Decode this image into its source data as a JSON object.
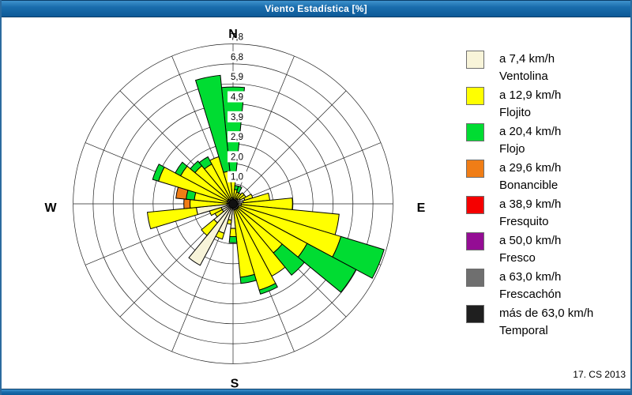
{
  "window": {
    "title": "Viento Estadística [%]",
    "footer": "17. CS 2013"
  },
  "legend": {
    "items": [
      {
        "speed": "a 7,4 km/h",
        "name": "Ventolina",
        "color": "#f8f4d9"
      },
      {
        "speed": "a 12,9 km/h",
        "name": "Flojito",
        "color": "#ffff00"
      },
      {
        "speed": "a 20,4 km/h",
        "name": "Flojo",
        "color": "#00dc32"
      },
      {
        "speed": "a 29,6 km/h",
        "name": "Bonancible",
        "color": "#f07d16"
      },
      {
        "speed": "a 38,9 km/h",
        "name": "Fresquito",
        "color": "#f50000"
      },
      {
        "speed": "a 50,0 km/h",
        "name": "Fresco",
        "color": "#940d94"
      },
      {
        "speed": "a 63,0 km/h",
        "name": "Frescachón",
        "color": "#6f6f6f"
      },
      {
        "speed": "más de 63,0 km/h",
        "name": "Temporal",
        "color": "#1f1f1f"
      }
    ]
  },
  "chart_data": {
    "type": "bar",
    "subtype": "wind-rose-stacked-polar",
    "title": "Viento Estadística [%]",
    "units": "%",
    "compass_labels": {
      "north": "N",
      "east": "E",
      "south": "S",
      "west": "W"
    },
    "ring_labels": [
      "1,0",
      "2,0",
      "2,9",
      "3,9",
      "4,9",
      "5,9",
      "6,8",
      "7,8"
    ],
    "ring_values": [
      0.975,
      1.95,
      2.925,
      3.9,
      4.875,
      5.85,
      6.825,
      7.8
    ],
    "rmax": 7.8,
    "grid_spoke_step_deg": 22.5,
    "sector_width_deg": 11.25,
    "series_classes": [
      "Ventolina",
      "Flojito",
      "Flojo",
      "Bonancible",
      "Fresquito",
      "Fresco",
      "Frescachón",
      "Temporal"
    ],
    "sectors": [
      {
        "dir": "N",
        "deg": 0.0,
        "values": [
          0.2,
          1.3,
          4.2,
          0
        ]
      },
      {
        "dir": "NbE",
        "deg": 11.25,
        "values": [
          0.2,
          0.5,
          0.2,
          0
        ]
      },
      {
        "dir": "NNE",
        "deg": 22.5,
        "values": [
          0.2,
          0.4,
          0.3,
          0
        ]
      },
      {
        "dir": "NEbN",
        "deg": 33.75,
        "values": [
          0.3,
          0.3,
          0,
          0
        ]
      },
      {
        "dir": "NE",
        "deg": 45.0,
        "values": [
          0.3,
          0.4,
          0,
          0
        ]
      },
      {
        "dir": "NEbE",
        "deg": 56.25,
        "values": [
          0.4,
          0.3,
          0,
          0
        ]
      },
      {
        "dir": "ENE",
        "deg": 67.5,
        "values": [
          0.6,
          0.4,
          0,
          0
        ]
      },
      {
        "dir": "EbN",
        "deg": 78.75,
        "values": [
          0.5,
          1.3,
          0,
          0
        ]
      },
      {
        "dir": "E",
        "deg": 90.0,
        "values": [
          0.4,
          2.5,
          0,
          0
        ]
      },
      {
        "dir": "EbS",
        "deg": 101.25,
        "values": [
          0.4,
          4.8,
          0,
          0
        ]
      },
      {
        "dir": "ESE",
        "deg": 112.5,
        "values": [
          0.3,
          5.2,
          2.2,
          0
        ]
      },
      {
        "dir": "SEbE",
        "deg": 123.75,
        "values": [
          0.3,
          3.8,
          2.7,
          0
        ]
      },
      {
        "dir": "SE",
        "deg": 135.0,
        "values": [
          0.3,
          2.8,
          1.4,
          0
        ]
      },
      {
        "dir": "SEbS",
        "deg": 146.25,
        "values": [
          0.3,
          3.7,
          0,
          0
        ]
      },
      {
        "dir": "SSE",
        "deg": 157.5,
        "values": [
          0.3,
          4.1,
          0.2,
          0
        ]
      },
      {
        "dir": "SbE",
        "deg": 168.75,
        "values": [
          0.3,
          3.3,
          0.3,
          0
        ]
      },
      {
        "dir": "S",
        "deg": 180.0,
        "values": [
          1.2,
          0.4,
          0.3,
          0
        ]
      },
      {
        "dir": "SbW",
        "deg": 191.25,
        "values": [
          0.8,
          0.2,
          0,
          0
        ]
      },
      {
        "dir": "SSW",
        "deg": 202.5,
        "values": [
          1.5,
          0.3,
          0,
          0
        ]
      },
      {
        "dir": "SWbS",
        "deg": 213.75,
        "values": [
          3.4,
          0,
          0,
          0
        ]
      },
      {
        "dir": "SW",
        "deg": 225.0,
        "values": [
          1.2,
          0.8,
          0,
          0
        ]
      },
      {
        "dir": "SWbW",
        "deg": 236.25,
        "values": [
          0.6,
          0.4,
          0,
          0
        ]
      },
      {
        "dir": "WSW",
        "deg": 247.5,
        "values": [
          0.6,
          0.6,
          0,
          0
        ]
      },
      {
        "dir": "WbS",
        "deg": 258.75,
        "values": [
          1.8,
          2.4,
          0,
          0
        ]
      },
      {
        "dir": "W",
        "deg": 270.0,
        "values": [
          0.3,
          1.8,
          0,
          0.3
        ]
      },
      {
        "dir": "WbN",
        "deg": 281.25,
        "values": [
          0.2,
          1.7,
          0.4,
          0.5
        ]
      },
      {
        "dir": "WNW",
        "deg": 292.5,
        "values": [
          0.3,
          3.5,
          0.3,
          0
        ]
      },
      {
        "dir": "NWbW",
        "deg": 303.75,
        "values": [
          0.3,
          2.6,
          0.3,
          0
        ]
      },
      {
        "dir": "NW",
        "deg": 315.0,
        "values": [
          0.3,
          2.1,
          0.3,
          0
        ]
      },
      {
        "dir": "NWbN",
        "deg": 326.25,
        "values": [
          0.2,
          2.0,
          0.4,
          0
        ]
      },
      {
        "dir": "NNW",
        "deg": 337.5,
        "values": [
          0.2,
          2.2,
          0,
          0
        ]
      },
      {
        "dir": "NbW",
        "deg": 348.75,
        "values": [
          0.3,
          1.3,
          4.7,
          0
        ]
      }
    ]
  }
}
